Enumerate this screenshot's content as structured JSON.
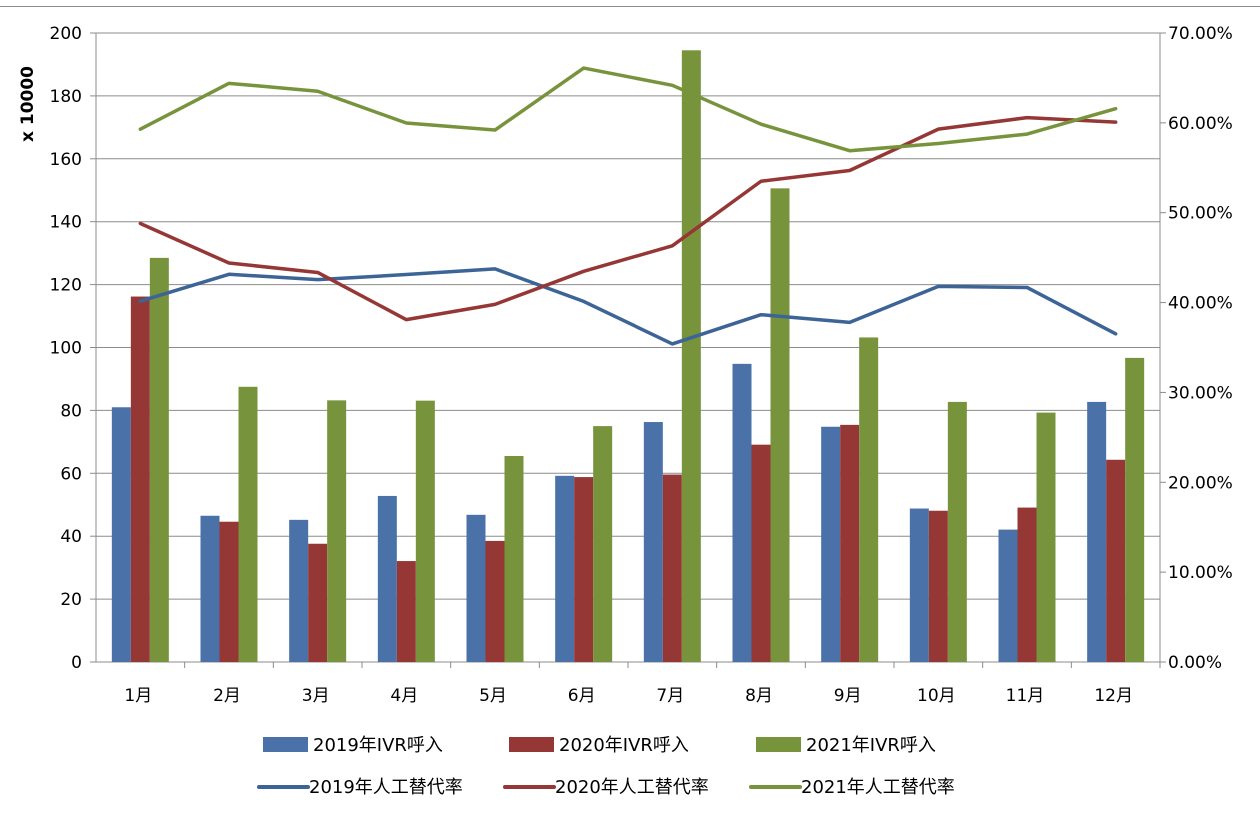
{
  "chart_data": {
    "type": "bar",
    "categories": [
      "1月",
      "2月",
      "3月",
      "4月",
      "5月",
      "6月",
      "7月",
      "8月",
      "9月",
      "10月",
      "11月",
      "12月"
    ],
    "y_left": {
      "label": "x 10000",
      "min": 0,
      "max": 200,
      "ticks": [
        "0",
        "20",
        "40",
        "60",
        "80",
        "100",
        "120",
        "140",
        "160",
        "180",
        "200"
      ]
    },
    "y_right": {
      "min": 0,
      "max": 0.7,
      "ticks": [
        "0.00%",
        "10.00%",
        "20.00%",
        "30.00%",
        "40.00%",
        "50.00%",
        "60.00%",
        "70.00%"
      ]
    },
    "grid": true,
    "legend_position": "bottom",
    "bar_series": [
      {
        "name": "2019年IVR呼入",
        "color": "#4a72a8",
        "values": [
          81,
          46.5,
          45.2,
          52.8,
          46.8,
          59.2,
          76.3,
          94.8,
          74.8,
          48.8,
          42.1,
          82.7
        ]
      },
      {
        "name": "2020年IVR呼入",
        "color": "#953735",
        "values": [
          116.2,
          44.6,
          37.6,
          32.1,
          38.5,
          58.8,
          59.6,
          69.1,
          75.4,
          48.1,
          49.1,
          64.3
        ]
      },
      {
        "name": "2021年IVR呼入",
        "color": "#77933c",
        "values": [
          128.5,
          87.5,
          83.2,
          83.1,
          65.5,
          75,
          194.5,
          150.6,
          103.2,
          82.7,
          79.3,
          96.7
        ]
      }
    ],
    "line_series": [
      {
        "name": "2019年人工替代率",
        "color": "#3d6496",
        "values": [
          0.4015,
          0.4315,
          0.4255,
          0.4312,
          0.4375,
          0.4013,
          0.354,
          0.3865,
          0.378,
          0.418,
          0.4168,
          0.3652
        ]
      },
      {
        "name": "2020年人工替代率",
        "color": "#953735",
        "values": [
          0.488,
          0.444,
          0.4335,
          0.381,
          0.398,
          0.4348,
          0.4632,
          0.535,
          0.547,
          0.593,
          0.6058,
          0.6008
        ]
      },
      {
        "name": "2021年人工替代率",
        "color": "#77933c",
        "values": [
          0.593,
          0.644,
          0.6352,
          0.5998,
          0.592,
          0.661,
          0.6418,
          0.5985,
          0.569,
          0.577,
          0.5875,
          0.6158
        ]
      }
    ]
  }
}
